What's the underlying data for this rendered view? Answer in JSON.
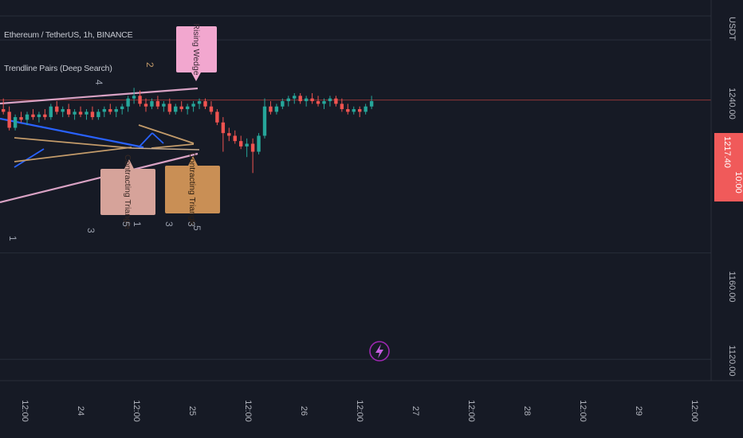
{
  "header": {
    "symbol_line": "Ethereum / TetherUS, 1h, BINANCE",
    "indicator_line": "Trendline Pairs (Deep Search)"
  },
  "price_axis": {
    "currency": "USDT",
    "labels": [
      "1240.00",
      "1160.00",
      "1120.00"
    ],
    "current_price": "1217.40",
    "countdown": "10:00"
  },
  "time_axis": {
    "labels": [
      "12:00",
      "24",
      "12:00",
      "25",
      "12:00",
      "26",
      "12:00",
      "27",
      "12:00",
      "28",
      "12:00",
      "29",
      "12:00"
    ]
  },
  "patterns": {
    "rising_wedge": "Rising Wedge",
    "contracting_triangle_1": "Contracting Triangle",
    "contracting_triangle_2": "Contracting Triangle"
  },
  "pivot_numbers": [
    "1",
    "2",
    "3",
    "4",
    "5",
    "1",
    "3",
    "3",
    "5"
  ],
  "colors": {
    "background": "#161a25",
    "bull": "#26a69a",
    "bear": "#ef5350",
    "trend_pink": "#d9a2c4",
    "trend_blue": "#2962ff",
    "trend_tan": "#c39b6a",
    "wedge_label": "#f2a7cf",
    "triangle_label_1": "#d6a39a",
    "triangle_label_2": "#c98f55",
    "price_tag": "#f05a5a",
    "grid": "#252a36"
  },
  "chart_data": {
    "type": "candlestick",
    "symbol": "Ethereum / TetherUS",
    "timeframe": "1h",
    "exchange": "BINANCE",
    "y_range": [
      1112,
      1255
    ],
    "x_range": [
      "2022-10-23T11:00",
      "2022-10-29T13:00"
    ],
    "last_price": 1217.4,
    "price_ticks": [
      1240,
      1160,
      1120
    ],
    "candles": [
      [
        1214,
        1218,
        1212,
        1213
      ],
      [
        1213,
        1215,
        1206,
        1207
      ],
      [
        1207,
        1212,
        1206,
        1211
      ],
      [
        1211,
        1213,
        1209,
        1210
      ],
      [
        1210,
        1213,
        1208,
        1212
      ],
      [
        1212,
        1214,
        1210,
        1211
      ],
      [
        1211,
        1213,
        1209,
        1212
      ],
      [
        1212,
        1214,
        1210,
        1211
      ],
      [
        1211,
        1216,
        1210,
        1215
      ],
      [
        1215,
        1217,
        1212,
        1213
      ],
      [
        1213,
        1215,
        1211,
        1214
      ],
      [
        1214,
        1216,
        1211,
        1212
      ],
      [
        1212,
        1214,
        1210,
        1213
      ],
      [
        1213,
        1215,
        1211,
        1212
      ],
      [
        1212,
        1214,
        1210,
        1213
      ],
      [
        1213,
        1215,
        1210,
        1211
      ],
      [
        1211,
        1214,
        1210,
        1213
      ],
      [
        1213,
        1215,
        1211,
        1214
      ],
      [
        1214,
        1216,
        1212,
        1213
      ],
      [
        1213,
        1215,
        1211,
        1214
      ],
      [
        1214,
        1216,
        1212,
        1215
      ],
      [
        1215,
        1219,
        1213,
        1218
      ],
      [
        1218,
        1222,
        1216,
        1219
      ],
      [
        1219,
        1221,
        1215,
        1216
      ],
      [
        1216,
        1218,
        1213,
        1215
      ],
      [
        1215,
        1218,
        1214,
        1217
      ],
      [
        1217,
        1219,
        1214,
        1215
      ],
      [
        1215,
        1217,
        1213,
        1216
      ],
      [
        1216,
        1218,
        1212,
        1213
      ],
      [
        1213,
        1216,
        1212,
        1215
      ],
      [
        1215,
        1217,
        1213,
        1214
      ],
      [
        1214,
        1216,
        1212,
        1215
      ],
      [
        1215,
        1217,
        1213,
        1216
      ],
      [
        1216,
        1218,
        1214,
        1217
      ],
      [
        1217,
        1218,
        1214,
        1215
      ],
      [
        1215,
        1217,
        1212,
        1213
      ],
      [
        1213,
        1214,
        1208,
        1209
      ],
      [
        1209,
        1211,
        1198,
        1205
      ],
      [
        1205,
        1207,
        1202,
        1204
      ],
      [
        1204,
        1206,
        1201,
        1202
      ],
      [
        1202,
        1204,
        1199,
        1200
      ],
      [
        1200,
        1203,
        1196,
        1201
      ],
      [
        1201,
        1203,
        1190,
        1198
      ],
      [
        1198,
        1205,
        1197,
        1204
      ],
      [
        1204,
        1218,
        1203,
        1215
      ],
      [
        1215,
        1217,
        1212,
        1213
      ],
      [
        1213,
        1216,
        1212,
        1215
      ],
      [
        1215,
        1218,
        1214,
        1217
      ],
      [
        1217,
        1219,
        1215,
        1218
      ],
      [
        1218,
        1220,
        1216,
        1219
      ],
      [
        1219,
        1220,
        1216,
        1217
      ],
      [
        1217,
        1219,
        1215,
        1218
      ],
      [
        1218,
        1220,
        1216,
        1217
      ],
      [
        1217,
        1219,
        1215,
        1216
      ],
      [
        1216,
        1218,
        1214,
        1217
      ],
      [
        1217,
        1219,
        1215,
        1218
      ],
      [
        1218,
        1219,
        1215,
        1216
      ],
      [
        1216,
        1218,
        1213,
        1214
      ],
      [
        1214,
        1216,
        1212,
        1213
      ],
      [
        1213,
        1215,
        1212,
        1214
      ],
      [
        1214,
        1215,
        1211,
        1213
      ],
      [
        1213,
        1216,
        1212,
        1215
      ],
      [
        1215,
        1219,
        1214,
        1217
      ]
    ]
  }
}
